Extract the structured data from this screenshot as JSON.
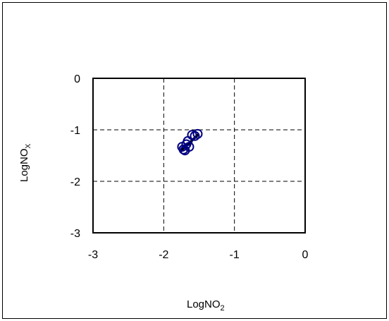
{
  "chart_data": {
    "type": "scatter",
    "xlabel": "LogNO",
    "xlabel_sub": "2",
    "ylabel": "LogNO",
    "ylabel_sub": "X",
    "xlim": [
      -3,
      0
    ],
    "ylim": [
      -3,
      0
    ],
    "x_ticks": [
      -3,
      -2,
      -1,
      0
    ],
    "y_ticks": [
      0,
      -1,
      -2,
      -3
    ],
    "x_tick_labels": [
      "-3",
      "-2",
      "-1",
      "0"
    ],
    "y_tick_labels": [
      "0",
      "-1",
      "-2",
      "-3"
    ],
    "grid": true,
    "grid_style": "dashed",
    "marker_color": "#000080",
    "line_color": "#000000",
    "series": [
      {
        "marker": "open-circle",
        "x": [
          -1.74,
          -1.7,
          -1.68,
          -1.64,
          -1.6,
          -1.56,
          -1.52,
          -1.66,
          -1.72
        ],
        "y": [
          -1.33,
          -1.4,
          -1.28,
          -1.33,
          -1.1,
          -1.12,
          -1.08,
          -1.22,
          -1.38
        ]
      }
    ],
    "fit_line": {
      "x": [
        -1.76,
        -1.51
      ],
      "y": [
        -1.41,
        -1.09
      ]
    }
  }
}
